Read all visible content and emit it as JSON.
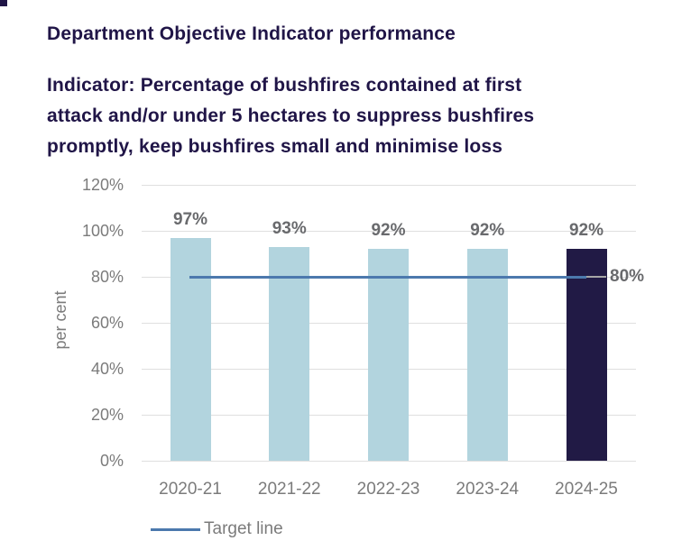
{
  "header": {
    "title": "Department Objective Indicator performance",
    "subtitle_lines": [
      "Indicator: Percentage of bushfires contained at first",
      "attack and/or under 5 hectares to suppress bushfires",
      "promptly, keep bushfires small and minimise loss"
    ]
  },
  "chart_data": {
    "type": "bar",
    "title": "Department Objective Indicator performance",
    "subtitle": "Indicator: Percentage of bushfires contained at first attack and/or under 5 hectares to suppress bushfires promptly, keep bushfires small and minimise loss",
    "categories": [
      "2020-21",
      "2021-22",
      "2022-23",
      "2023-24",
      "2024-25"
    ],
    "series": [
      {
        "name": "Percentage of bushfires contained at first attack and/or under 5 hectares",
        "values": [
          97,
          93,
          92,
          92,
          92
        ]
      }
    ],
    "data_labels": [
      "97%",
      "93%",
      "92%",
      "92%",
      "92%"
    ],
    "target": {
      "value": 80,
      "label": "80%",
      "legend_label": "Target line"
    },
    "ylabel": "per cent",
    "xlabel": "",
    "yticks": [
      "120%",
      "100%",
      "80%",
      "60%",
      "40%",
      "20%",
      "0%"
    ],
    "ylim": [
      0,
      120
    ],
    "grid": "horizontal",
    "legend_position": "bottom-left",
    "highlight_index": 4,
    "colors": {
      "bar": "#b2d4de",
      "bar_highlight": "#211a45",
      "target_line": "#4c79ad",
      "leader_line": "#a6a6a6",
      "title_text": "#201547",
      "label_text": "#696a6d",
      "axis_text": "#7b7b7b",
      "gridline": "#dfdfdf"
    }
  }
}
